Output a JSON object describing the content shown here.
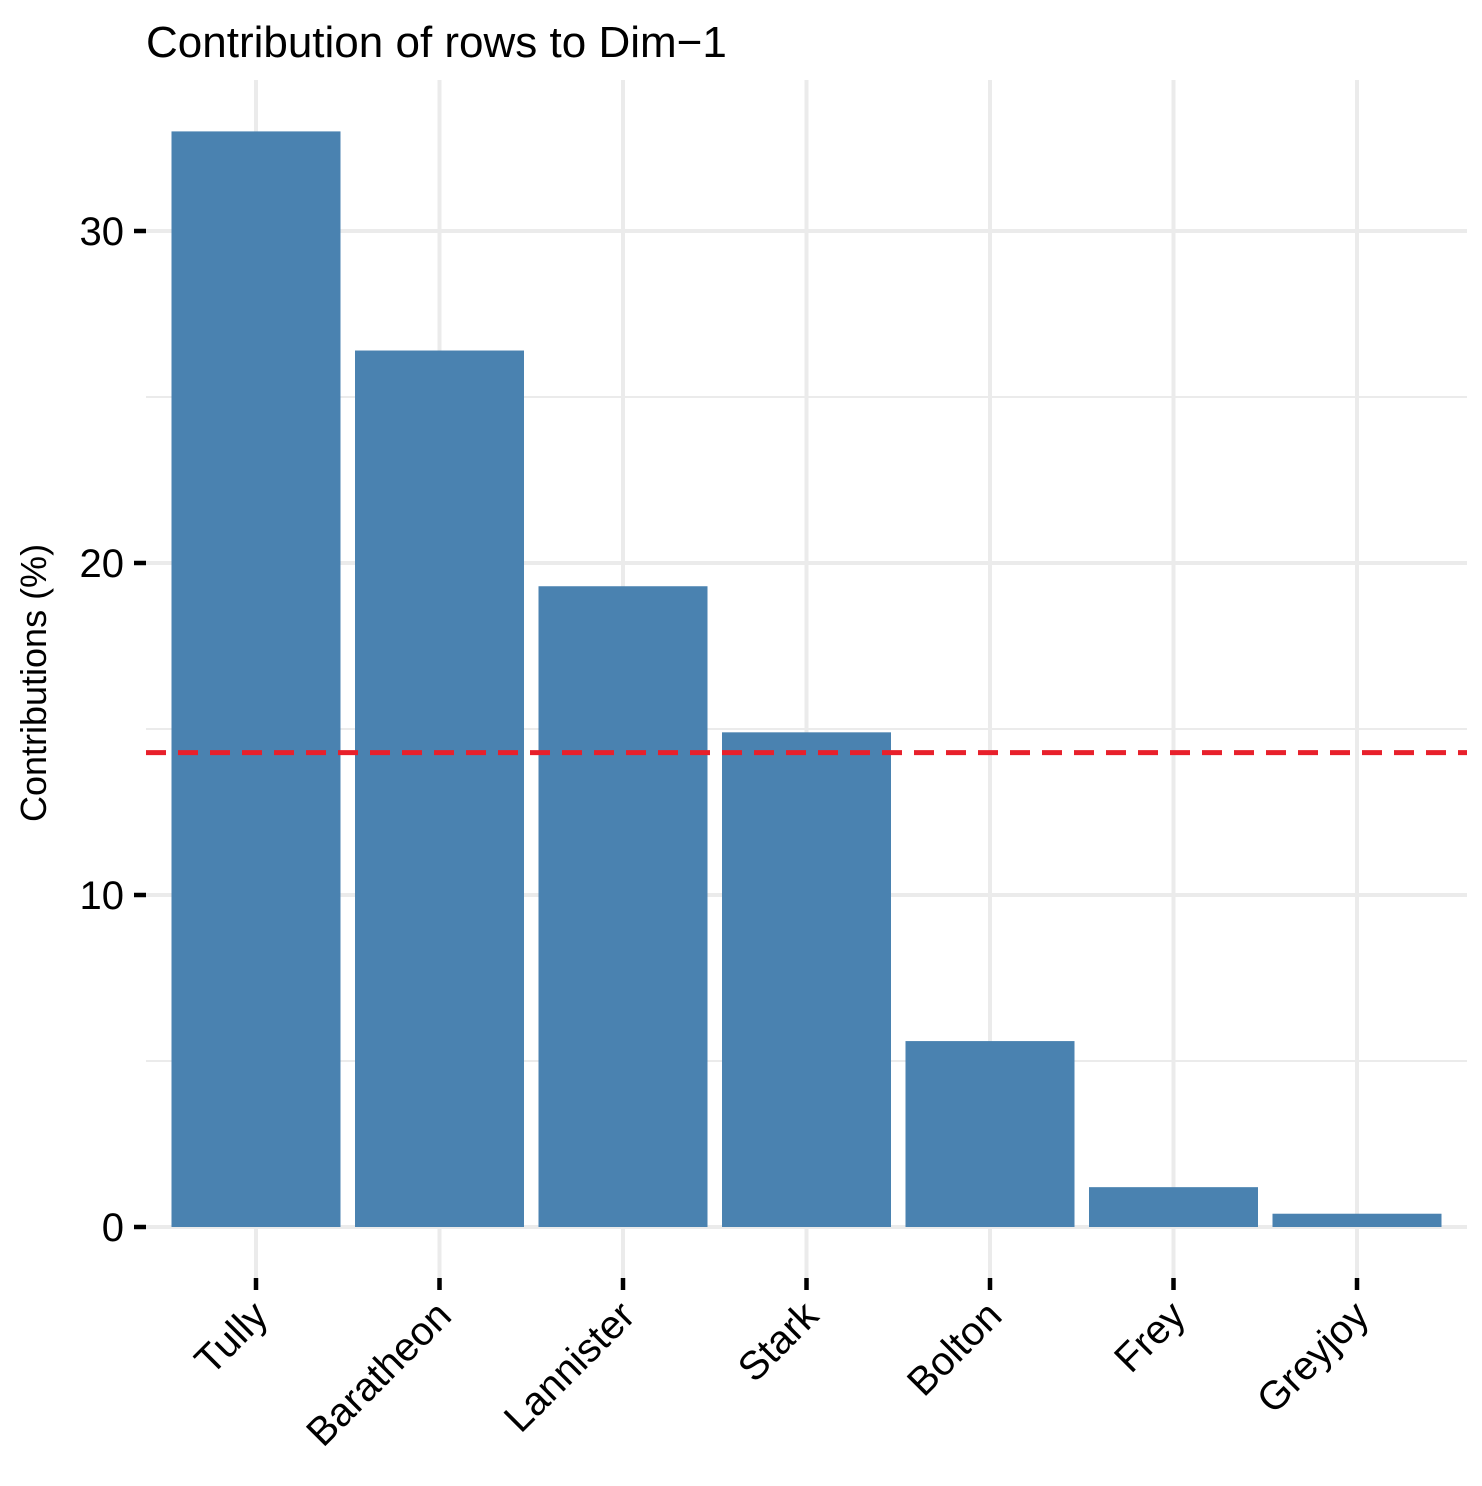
{
  "chart_data": {
    "type": "bar",
    "title": "Contribution of rows to Dim−1",
    "xlabel": "",
    "ylabel": "Contributions (%)",
    "categories": [
      "Tully",
      "Baratheon",
      "Lannister",
      "Stark",
      "Bolton",
      "Frey",
      "Greyjoy"
    ],
    "values": [
      33.0,
      26.4,
      19.3,
      14.9,
      5.6,
      1.2,
      0.4
    ],
    "ylim": [
      0,
      33.0
    ],
    "yticks": [
      "0",
      "10",
      "20",
      "30"
    ],
    "reference_line": {
      "value": 14.29,
      "style": "dashed",
      "color": "#e8202b"
    },
    "bar_color": "#4a82b0",
    "grid": true,
    "legend": "none"
  }
}
